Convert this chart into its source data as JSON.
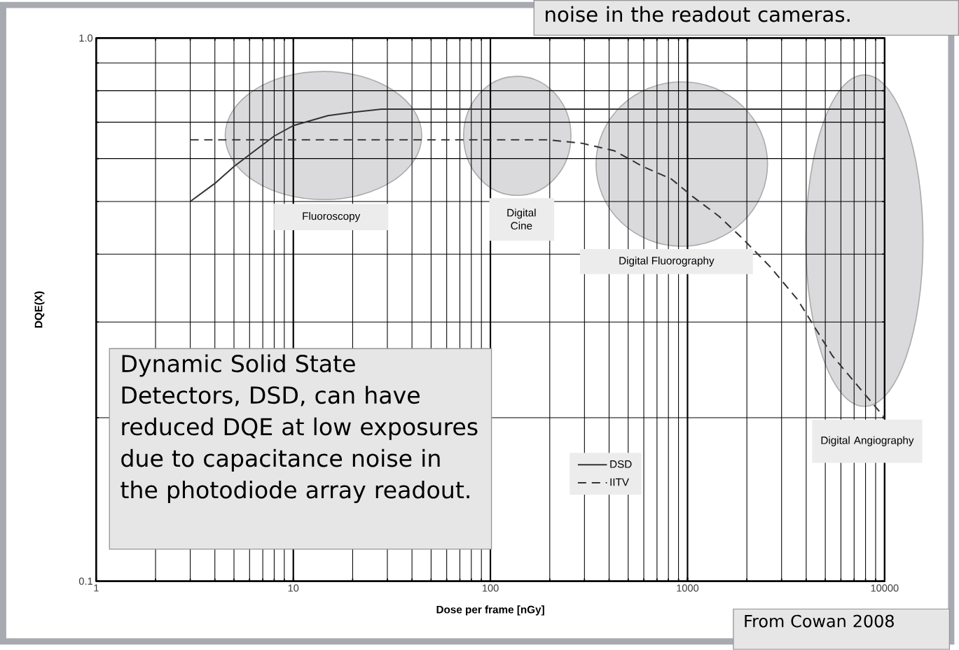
{
  "chart_data": {
    "type": "line",
    "xlabel": "Dose per frame [nGy]",
    "ylabel": "DQE(X)",
    "log": "xy",
    "xlim": [
      1,
      10000
    ],
    "ylim": [
      0.1,
      1
    ],
    "xticks": [
      1,
      10,
      100,
      1000,
      10000
    ],
    "yticks": [
      0.1,
      {
        "value": 1,
        "label": "1.0"
      }
    ],
    "grid": true,
    "legend": "bottom",
    "series": [
      {
        "name": "DSD",
        "color": "#333333",
        "line_style": "solid",
        "x": [
          3,
          4,
          5,
          6,
          8,
          10,
          15,
          20,
          28,
          10000
        ],
        "values": [
          0.5,
          0.54,
          0.58,
          0.61,
          0.66,
          0.69,
          0.72,
          0.73,
          0.74,
          0.74
        ]
      },
      {
        "name": "IITV",
        "color": "#333333",
        "line_style": "dashed",
        "x": [
          3,
          100,
          195,
          293,
          426,
          594,
          829,
          1067,
          1442,
          1871,
          2612,
          3616,
          5433,
          10000
        ],
        "values": [
          0.65,
          0.65,
          0.65,
          0.64,
          0.62,
          0.58,
          0.55,
          0.51,
          0.47,
          0.43,
          0.38,
          0.33,
          0.26,
          0.2
        ]
      }
    ],
    "annotations": [
      "Fluoroscopy",
      "Digital Cine",
      "Digital Fluorography",
      "Digital Angiography",
      "Dynamic Solid State Detectors, DSD, can have reduced DQE at low exposures due to capacitance noise in the photodiode array readout.",
      "noise in the readout cameras.",
      "From Cowan 2008"
    ]
  }
}
